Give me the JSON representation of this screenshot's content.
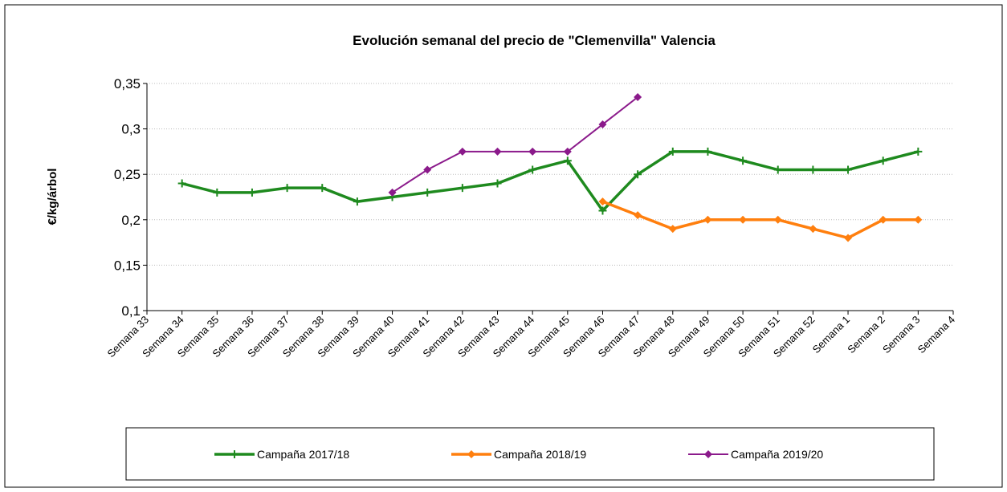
{
  "chart_data": {
    "type": "line",
    "title": "Evolución semanal del precio de \"Clemenvilla\" Valencia",
    "y_label": "€/kg/árbol",
    "categories": [
      "Semana 33",
      "Semana 34",
      "Semana 35",
      "Semana 36",
      "Semana 37",
      "Semana 38",
      "Semana 39",
      "Semana 40",
      "Semana 41",
      "Semana 42",
      "Semana 43",
      "Semana 44",
      "Semana 45",
      "Semana 46",
      "Semana 47",
      "Semana 48",
      "Semana 49",
      "Semana 50",
      "Semana 51",
      "Semana 52",
      "Semana 1",
      "Semana 2",
      "Semana 3",
      "Semana 4"
    ],
    "series": [
      {
        "name": "Campaña 2017/18",
        "color": "#1e8a1e",
        "marker": "plus",
        "values": [
          null,
          0.24,
          0.23,
          0.23,
          0.235,
          0.235,
          0.22,
          0.225,
          0.23,
          0.235,
          0.24,
          0.255,
          0.265,
          0.21,
          0.25,
          0.275,
          0.275,
          0.265,
          0.255,
          0.255,
          0.255,
          0.265,
          0.275,
          null
        ]
      },
      {
        "name": "Campaña 2018/19",
        "color": "#ff7f0e",
        "marker": "diamond",
        "values": [
          null,
          null,
          null,
          null,
          null,
          null,
          null,
          null,
          null,
          null,
          null,
          null,
          null,
          0.22,
          0.205,
          0.19,
          0.2,
          0.2,
          0.2,
          0.19,
          0.18,
          0.2,
          0.2,
          null
        ]
      },
      {
        "name": "Campaña 2019/20",
        "color": "#8b1a8b",
        "marker": "diamond",
        "values": [
          null,
          null,
          null,
          null,
          null,
          null,
          null,
          0.23,
          0.255,
          0.275,
          0.275,
          0.275,
          0.275,
          0.305,
          0.335,
          null,
          null,
          null,
          null,
          null,
          null,
          null,
          null,
          null
        ]
      }
    ],
    "ylim": [
      0.1,
      0.35
    ],
    "yticks": [
      {
        "value": 0.1,
        "label": "0,1"
      },
      {
        "value": 0.15,
        "label": "0,15"
      },
      {
        "value": 0.2,
        "label": "0,2"
      },
      {
        "value": 0.25,
        "label": "0,25"
      },
      {
        "value": 0.3,
        "label": "0,3"
      },
      {
        "value": 0.35,
        "label": "0,35"
      }
    ],
    "grid": true,
    "legend": "bottom"
  }
}
